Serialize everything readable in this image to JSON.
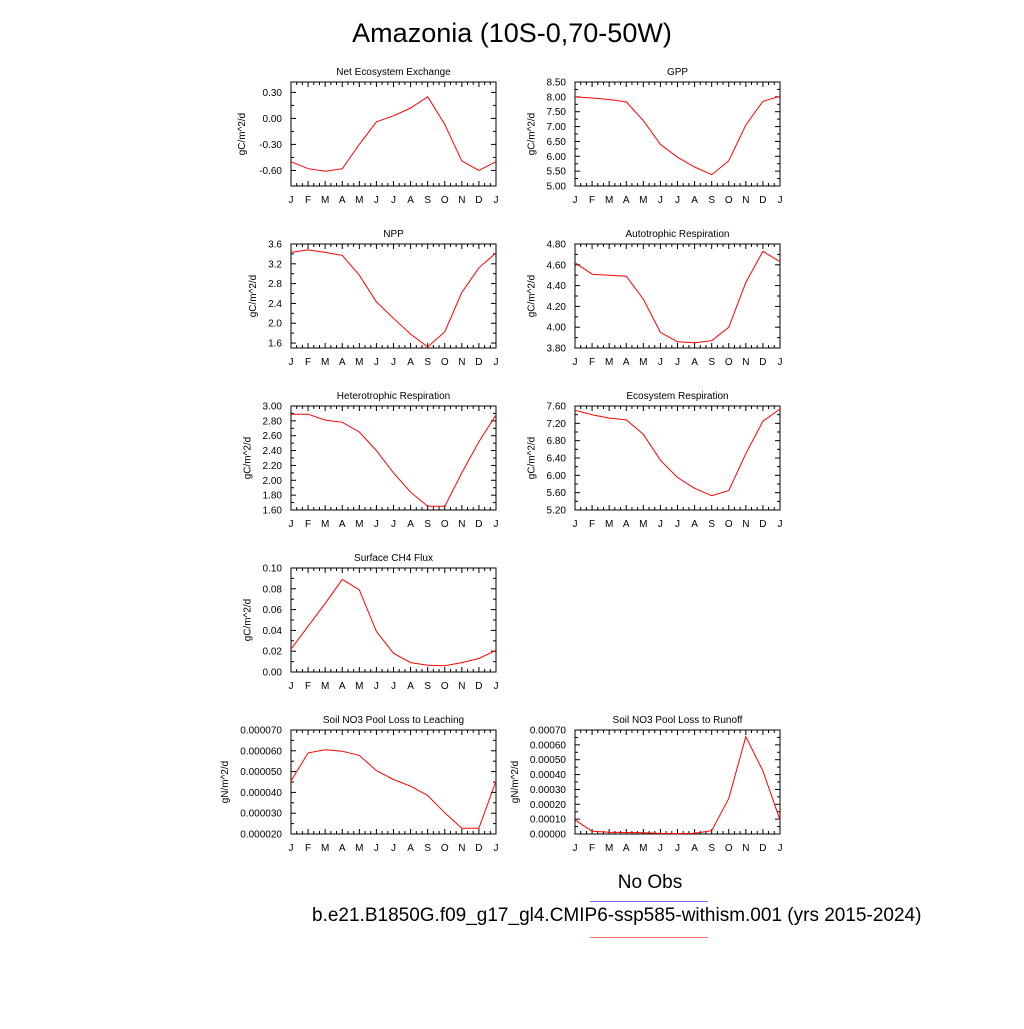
{
  "page": {
    "title": "Amazonia (10S-0,70-50W)"
  },
  "legend": {
    "obs_label": "No Obs",
    "model_label": "b.e21.B1850G.f09_g17_gl4.CMIP6-ssp585-withism.001 (yrs 2015-2024)",
    "obs_color": "#6a6aff",
    "model_color": "#ff0000"
  },
  "chart_data": [
    {
      "type": "line",
      "title": "Net Ecosystem Exchange",
      "ylabel": "gC/m^2/d",
      "categories": [
        "J",
        "F",
        "M",
        "A",
        "M",
        "J",
        "J",
        "A",
        "S",
        "O",
        "N",
        "D",
        "J"
      ],
      "ylim": [
        -0.78,
        0.42
      ],
      "yticks": [
        0.3,
        0.0,
        -0.3,
        -0.6
      ],
      "ytick_labels": [
        "0.30",
        "0.00",
        "-0.30",
        "-0.60"
      ],
      "series": [
        {
          "color": "#ff0000",
          "values": [
            -0.5,
            -0.58,
            -0.61,
            -0.58,
            -0.3,
            -0.04,
            0.03,
            0.12,
            0.25,
            -0.07,
            -0.49,
            -0.6,
            -0.5
          ]
        }
      ]
    },
    {
      "type": "line",
      "title": "GPP",
      "ylabel": "gC/m^2/d",
      "categories": [
        "J",
        "F",
        "M",
        "A",
        "M",
        "J",
        "J",
        "A",
        "S",
        "O",
        "N",
        "D",
        "J"
      ],
      "ylim": [
        5.0,
        8.5
      ],
      "yticks": [
        5.0,
        5.5,
        6.0,
        6.5,
        7.0,
        7.5,
        8.0,
        8.5
      ],
      "ytick_labels": [
        "5.00",
        "5.50",
        "6.00",
        "6.50",
        "7.00",
        "7.50",
        "8.00",
        "8.50"
      ],
      "series": [
        {
          "color": "#ff0000",
          "values": [
            8.0,
            7.96,
            7.91,
            7.83,
            7.2,
            6.4,
            5.97,
            5.64,
            5.38,
            5.85,
            7.05,
            7.85,
            8.02
          ]
        }
      ]
    },
    {
      "type": "line",
      "title": "NPP",
      "ylabel": "gC/m^2/d",
      "categories": [
        "J",
        "F",
        "M",
        "A",
        "M",
        "J",
        "J",
        "A",
        "S",
        "O",
        "N",
        "D",
        "J"
      ],
      "ylim": [
        1.5,
        3.6
      ],
      "yticks": [
        1.6,
        2.0,
        2.4,
        2.8,
        3.2,
        3.6
      ],
      "ytick_labels": [
        "1.6",
        "2.0",
        "2.4",
        "2.8",
        "3.2",
        "3.6"
      ],
      "series": [
        {
          "color": "#ff0000",
          "values": [
            3.43,
            3.48,
            3.43,
            3.37,
            2.97,
            2.43,
            2.1,
            1.78,
            1.52,
            1.83,
            2.62,
            3.12,
            3.42
          ]
        }
      ]
    },
    {
      "type": "line",
      "title": "Autotrophic Respiration",
      "ylabel": "gC/m^2/d",
      "categories": [
        "J",
        "F",
        "M",
        "A",
        "M",
        "J",
        "J",
        "A",
        "S",
        "O",
        "N",
        "D",
        "J"
      ],
      "ylim": [
        3.8,
        4.8
      ],
      "yticks": [
        3.8,
        4.0,
        4.2,
        4.4,
        4.6,
        4.8
      ],
      "ytick_labels": [
        "3.80",
        "4.00",
        "4.20",
        "4.40",
        "4.60",
        "4.80"
      ],
      "series": [
        {
          "color": "#ff0000",
          "values": [
            4.62,
            4.51,
            4.5,
            4.49,
            4.27,
            3.95,
            3.86,
            3.85,
            3.87,
            4.0,
            4.43,
            4.73,
            4.63
          ]
        }
      ]
    },
    {
      "type": "line",
      "title": "Heterotrophic Respiration",
      "ylabel": "gC/m^2/d",
      "categories": [
        "J",
        "F",
        "M",
        "A",
        "M",
        "J",
        "J",
        "A",
        "S",
        "O",
        "N",
        "D",
        "J"
      ],
      "ylim": [
        1.6,
        3.0
      ],
      "yticks": [
        1.6,
        1.8,
        2.0,
        2.2,
        2.4,
        2.6,
        2.8,
        3.0
      ],
      "ytick_labels": [
        "1.60",
        "1.80",
        "2.00",
        "2.20",
        "2.40",
        "2.60",
        "2.80",
        "3.00"
      ],
      "series": [
        {
          "color": "#ff0000",
          "values": [
            2.89,
            2.89,
            2.81,
            2.78,
            2.65,
            2.4,
            2.1,
            1.84,
            1.65,
            1.65,
            2.1,
            2.52,
            2.88
          ]
        }
      ]
    },
    {
      "type": "line",
      "title": "Ecosystem Respiration",
      "ylabel": "gC/m^2/d",
      "categories": [
        "J",
        "F",
        "M",
        "A",
        "M",
        "J",
        "J",
        "A",
        "S",
        "O",
        "N",
        "D",
        "J"
      ],
      "ylim": [
        5.2,
        7.6
      ],
      "yticks": [
        5.2,
        5.6,
        6.0,
        6.4,
        6.8,
        7.2,
        7.6
      ],
      "ytick_labels": [
        "5.20",
        "5.60",
        "6.00",
        "6.40",
        "6.80",
        "7.20",
        "7.60"
      ],
      "series": [
        {
          "color": "#ff0000",
          "values": [
            7.5,
            7.4,
            7.32,
            7.28,
            6.95,
            6.35,
            5.95,
            5.7,
            5.53,
            5.65,
            6.5,
            7.25,
            7.53
          ]
        }
      ]
    },
    {
      "type": "line",
      "title": "Surface CH4 Flux",
      "ylabel": "gC/m^2/d",
      "categories": [
        "J",
        "F",
        "M",
        "A",
        "M",
        "J",
        "J",
        "A",
        "S",
        "O",
        "N",
        "D",
        "J"
      ],
      "ylim": [
        0.0,
        0.1
      ],
      "yticks": [
        0.0,
        0.02,
        0.04,
        0.06,
        0.08,
        0.1
      ],
      "ytick_labels": [
        "0.00",
        "0.02",
        "0.04",
        "0.06",
        "0.08",
        "0.10"
      ],
      "series": [
        {
          "color": "#ff0000",
          "values": [
            0.022,
            0.044,
            0.066,
            0.089,
            0.079,
            0.039,
            0.018,
            0.009,
            0.0065,
            0.006,
            0.009,
            0.013,
            0.021
          ]
        }
      ]
    },
    {
      "type": "line",
      "title": "Soil NO3 Pool Loss to Leaching",
      "ylabel": "gN/m^2/d",
      "categories": [
        "J",
        "F",
        "M",
        "A",
        "M",
        "J",
        "J",
        "A",
        "S",
        "O",
        "N",
        "D",
        "J"
      ],
      "ylim": [
        2e-05,
        7e-05
      ],
      "yticks": [
        2e-05,
        3e-05,
        4e-05,
        5e-05,
        6e-05,
        7e-05
      ],
      "ytick_labels": [
        "0.000020",
        "0.000030",
        "0.000040",
        "0.000050",
        "0.000060",
        "0.000070"
      ],
      "series": [
        {
          "color": "#ff0000",
          "values": [
            4.55e-05,
            5.9e-05,
            6.05e-05,
            5.98e-05,
            5.78e-05,
            5.05e-05,
            4.62e-05,
            4.3e-05,
            3.85e-05,
            3.02e-05,
            2.28e-05,
            2.28e-05,
            4.55e-05
          ]
        }
      ]
    },
    {
      "type": "line",
      "title": "Soil NO3 Pool Loss to Runoff",
      "ylabel": "gN/m^2/d",
      "categories": [
        "J",
        "F",
        "M",
        "A",
        "M",
        "J",
        "J",
        "A",
        "S",
        "O",
        "N",
        "D",
        "J"
      ],
      "ylim": [
        0.0,
        0.0007
      ],
      "yticks": [
        0.0,
        0.0001,
        0.0002,
        0.0003,
        0.0004,
        0.0005,
        0.0006,
        0.0007
      ],
      "ytick_labels": [
        "0.00000",
        "0.00010",
        "0.00020",
        "0.00030",
        "0.00040",
        "0.00050",
        "0.00060",
        "0.00070"
      ],
      "series": [
        {
          "color": "#ff0000",
          "values": [
            9.5e-05,
            1.8e-05,
            1.2e-05,
            1e-05,
            8e-06,
            4e-06,
            3e-06,
            5e-06,
            2.2e-05,
            0.00024,
            0.000655,
            0.000425,
            9.5e-05
          ]
        }
      ]
    }
  ]
}
